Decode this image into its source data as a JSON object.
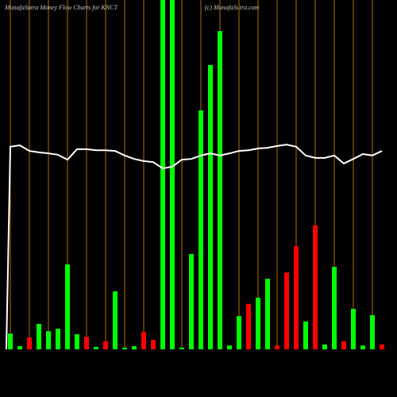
{
  "chart_data": {
    "type": "bar",
    "title": "MunafaSutra  Money Flow  Charts for KNCT",
    "subtitle": "(c) MunafaSutra.com",
    "values": [
      4.5,
      0.9,
      3.4,
      7.3,
      5.2,
      5.9,
      24.3,
      4.3,
      3.6,
      0.7,
      2.3,
      16.6,
      0.5,
      0.9,
      5,
      2.7,
      100,
      100,
      0.5,
      27.3,
      68.4,
      81.4,
      91.1,
      1.1,
      9.5,
      13,
      14.8,
      20.2,
      1.1,
      22,
      29.5,
      8,
      35.5,
      1.4,
      23.6,
      2.3,
      11.6,
      1.1,
      9.8,
      1.4
    ],
    "colors": [
      "#00ff00",
      "#00ff00",
      "#ff0000",
      "#00ff00",
      "#00ff00",
      "#00ff00",
      "#00ff00",
      "#00ff00",
      "#ff0000",
      "#00ff00",
      "#ff0000",
      "#00ff00",
      "#00ff00",
      "#00ff00",
      "#ff0000",
      "#ff0000",
      "#00ff00",
      "#00ff00",
      "#00ff00",
      "#00ff00",
      "#00ff00",
      "#00ff00",
      "#00ff00",
      "#00ff00",
      "#00ff00",
      "#ff0000",
      "#00ff00",
      "#00ff00",
      "#ff0000",
      "#ff0000",
      "#ff0000",
      "#00ff00",
      "#ff0000",
      "#00ff00",
      "#00ff00",
      "#ff0000",
      "#00ff00",
      "#00ff00",
      "#00ff00",
      "#ff0000"
    ],
    "line": {
      "color": "#ffffff",
      "values": [
        58.0,
        58.4,
        56.8,
        56.4,
        56.1,
        55.7,
        54.3,
        57.3,
        57.3,
        57.0,
        57.0,
        56.8,
        55.5,
        54.5,
        53.9,
        53.6,
        51.8,
        52.3,
        54.3,
        54.5,
        55.5,
        56.1,
        55.5,
        56.1,
        56.8,
        57.0,
        57.5,
        57.7,
        58.2,
        58.6,
        58.0,
        55.5,
        54.8,
        54.8,
        55.5,
        53.2,
        54.5,
        55.9,
        55.5,
        56.8
      ]
    },
    "ylim": [
      0,
      100
    ],
    "grid": true,
    "grid_color": "#b36b00"
  }
}
